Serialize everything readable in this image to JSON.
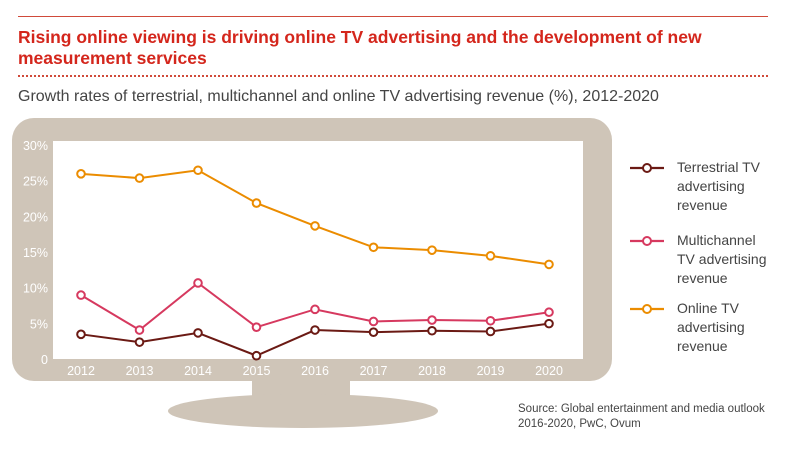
{
  "title": "Rising online viewing is driving online TV advertising and the development of new measurement services",
  "subtitle": "Growth rates of terrestrial, multichannel and online TV advertising revenue (%), 2012-2020",
  "source": "Source: Global entertainment and media outlook 2016-2020, PwC, Ovum",
  "colors": {
    "accent": "#d4261c",
    "tv_frame": "#cfc5b8",
    "terrestrial": "#6b1a14",
    "multichannel": "#d6395f",
    "online": "#eb8c00"
  },
  "chart_data": {
    "type": "line",
    "categories": [
      "2012",
      "2013",
      "2014",
      "2015",
      "2016",
      "2017",
      "2018",
      "2019",
      "2020"
    ],
    "ylim": [
      0,
      30
    ],
    "yticks": [
      0,
      5,
      10,
      15,
      20,
      25,
      30
    ],
    "ytick_labels": [
      "0",
      "5%",
      "10%",
      "15%",
      "20%",
      "25%",
      "30%"
    ],
    "grid": false,
    "legend_position": "right",
    "series": [
      {
        "name": "Terrestrial TV\nadvertising\nrevenue",
        "color_key": "terrestrial",
        "values": [
          3.6,
          2.5,
          3.8,
          0.6,
          4.2,
          3.9,
          4.1,
          4.0,
          5.1
        ]
      },
      {
        "name": "Multichannel\nTV advertising\nrevenue",
        "color_key": "multichannel",
        "values": [
          9.1,
          4.2,
          10.8,
          4.6,
          7.1,
          5.4,
          5.6,
          5.5,
          6.7
        ]
      },
      {
        "name": "Online TV\nadvertising\nrevenue",
        "color_key": "online",
        "values": [
          26.1,
          25.5,
          26.6,
          22.0,
          18.8,
          15.8,
          15.4,
          14.6,
          13.4
        ]
      }
    ]
  }
}
